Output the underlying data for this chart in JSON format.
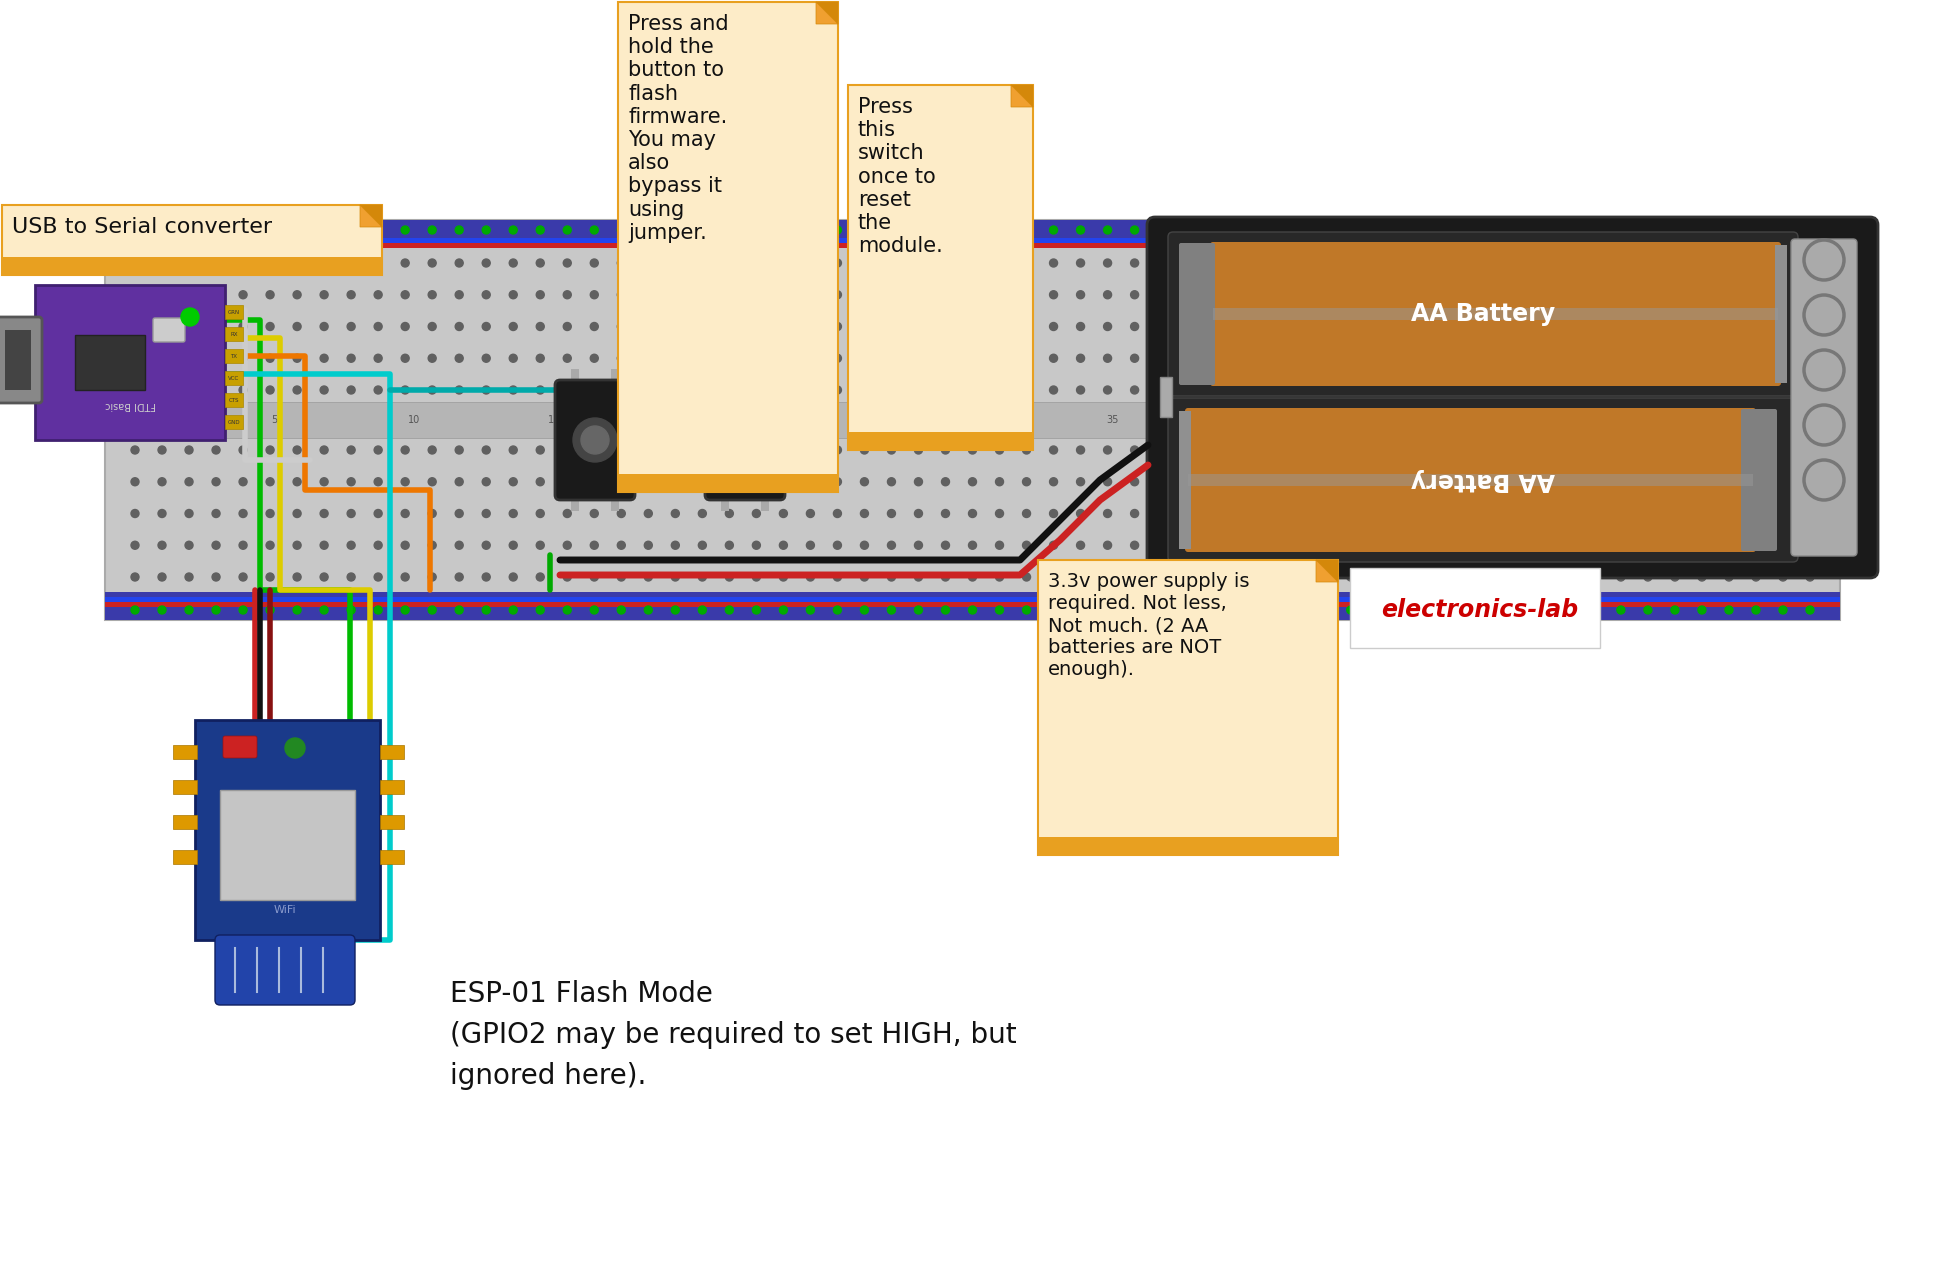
{
  "bg_color": "#ffffff",
  "title": "ESP-01 Flash Mode\n(GPIO2 may be required to set HIGH, but\nignored here).",
  "title_fontsize": 20,
  "note1_text": "Press and\nhold the\nbutton to\nflash\nfirmware.\nYou may\nalso\nbypass it\nusing\njumper.",
  "note2_text": "Press\nthis\nswitch\nonce to\nreset\nthe\nmodule.",
  "note3_text": "USB to Serial converter",
  "note4_text": "3.3v power supply is\nrequired. Not less,\nNot much. (2 AA\nbatteries are NOT\nenough).",
  "elab_text": "electronics-lab",
  "note_bg": "#fdecc8",
  "note_border": "#e8a020",
  "note_fold": "#d4880a"
}
